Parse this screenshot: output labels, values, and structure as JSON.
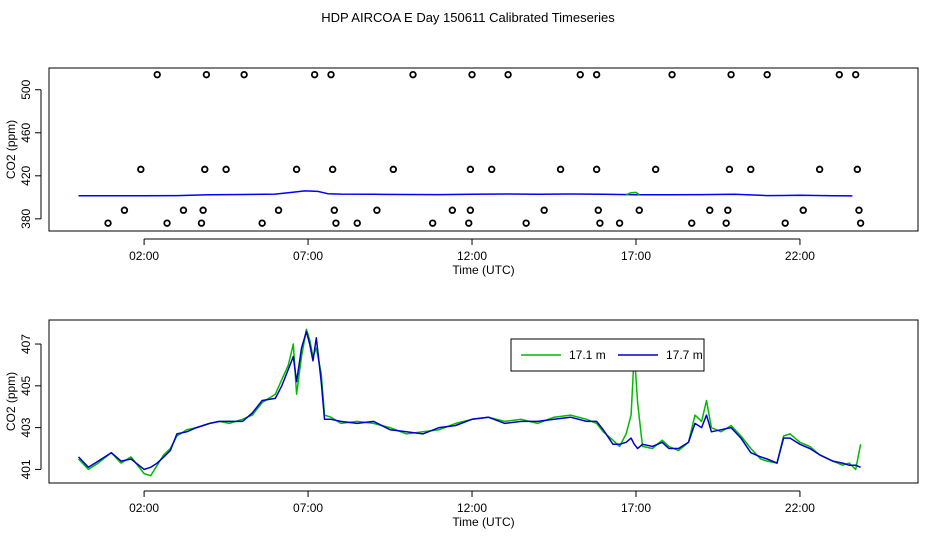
{
  "chart_data": [
    {
      "type": "scatter",
      "title": "HDP AIRCOA E  Day 150611  Calibrated Timeseries",
      "xlabel": "Time (UTC)",
      "ylabel": "CO2 (ppm)",
      "xlim": [
        -0.9,
        25.6
      ],
      "ylim": [
        368.7,
        520.2
      ],
      "x_ticks": [
        2,
        7,
        12,
        17,
        22
      ],
      "x_tick_labels": [
        "02:00",
        "07:00",
        "12:00",
        "17:00",
        "22:00"
      ],
      "y_ticks": [
        380,
        420,
        460,
        500
      ],
      "y_tick_labels": [
        "380",
        "420",
        "460",
        "500"
      ],
      "series": [
        {
          "color": "#000000",
          "marker": "open-circle",
          "points": [
            [
              0.9,
              376
            ],
            [
              1.4,
              388
            ],
            [
              1.9,
              426
            ],
            [
              2.4,
              514
            ],
            [
              2.7,
              376
            ],
            [
              3.2,
              388
            ],
            [
              3.75,
              376
            ],
            [
              3.8,
              388
            ],
            [
              3.85,
              426
            ],
            [
              3.9,
              514
            ],
            [
              4.5,
              426
            ],
            [
              5.05,
              514
            ],
            [
              5.6,
              376
            ],
            [
              6.1,
              388
            ],
            [
              6.65,
              426
            ],
            [
              7.2,
              514
            ],
            [
              7.7,
              514
            ],
            [
              7.75,
              426
            ],
            [
              7.8,
              388
            ],
            [
              7.85,
              376
            ],
            [
              8.5,
              376
            ],
            [
              9.1,
              388
            ],
            [
              9.6,
              426
            ],
            [
              10.2,
              514
            ],
            [
              10.8,
              376
            ],
            [
              11.4,
              388
            ],
            [
              11.9,
              376
            ],
            [
              11.95,
              388
            ],
            [
              11.95,
              426
            ],
            [
              12.0,
              514
            ],
            [
              12.6,
              426
            ],
            [
              13.1,
              514
            ],
            [
              13.65,
              376
            ],
            [
              14.2,
              388
            ],
            [
              14.7,
              426
            ],
            [
              15.3,
              514
            ],
            [
              15.8,
              514
            ],
            [
              15.8,
              426
            ],
            [
              15.85,
              388
            ],
            [
              15.9,
              376
            ],
            [
              16.5,
              376
            ],
            [
              17.1,
              388
            ],
            [
              17.6,
              426
            ],
            [
              18.1,
              514
            ],
            [
              18.7,
              376
            ],
            [
              19.25,
              388
            ],
            [
              19.75,
              376
            ],
            [
              19.8,
              388
            ],
            [
              19.85,
              426
            ],
            [
              19.9,
              514
            ],
            [
              20.5,
              426
            ],
            [
              21.0,
              514
            ],
            [
              21.55,
              376
            ],
            [
              22.1,
              388
            ],
            [
              22.6,
              426
            ],
            [
              23.2,
              514
            ],
            [
              23.7,
              514
            ],
            [
              23.75,
              426
            ],
            [
              23.8,
              388
            ],
            [
              23.85,
              376
            ]
          ]
        },
        {
          "color": "#0000ff",
          "type": "line",
          "x": [
            0.0,
            1.0,
            2.0,
            3.0,
            4.0,
            5.0,
            6.0,
            6.5,
            6.9,
            7.3,
            7.6,
            8.0,
            9.0,
            10.0,
            11.0,
            12.0,
            13.0,
            14.0,
            15.0,
            16.0,
            17.0,
            18.0,
            19.0,
            20.0,
            21.0,
            21.5,
            22.0,
            23.0,
            23.6
          ],
          "y": [
            401.5,
            401.4,
            401.4,
            401.6,
            402.3,
            402.6,
            403.0,
            404.6,
            406.0,
            405.5,
            403.4,
            403.0,
            402.8,
            402.6,
            402.5,
            402.9,
            403.1,
            402.9,
            403.1,
            402.9,
            402.4,
            402.3,
            402.5,
            402.9,
            401.6,
            401.7,
            401.9,
            401.4,
            401.3
          ]
        },
        {
          "color": "#00bb00",
          "type": "line",
          "x": [
            16.7,
            16.85,
            17.0,
            17.1
          ],
          "y": [
            402.4,
            404.3,
            404.6,
            402.4
          ]
        }
      ]
    },
    {
      "type": "line",
      "xlabel": "Time (UTC)",
      "ylabel": "CO2 (ppm)",
      "xlim": [
        -0.9,
        25.6
      ],
      "ylim": [
        400.35,
        408.15
      ],
      "x_ticks": [
        2,
        7,
        12,
        17,
        22
      ],
      "x_tick_labels": [
        "02:00",
        "07:00",
        "12:00",
        "17:00",
        "22:00"
      ],
      "y_ticks": [
        401,
        403,
        405,
        407
      ],
      "y_tick_labels": [
        "401",
        "403",
        "405",
        "407"
      ],
      "legend_position": "top-right",
      "series": [
        {
          "name": "17.1 m",
          "color": "#00bb00",
          "x": [
            0.0,
            0.3,
            0.6,
            1.0,
            1.3,
            1.6,
            2.0,
            2.2,
            2.4,
            2.6,
            2.8,
            3.0,
            3.3,
            3.6,
            4.0,
            4.3,
            4.6,
            5.0,
            5.3,
            5.6,
            6.0,
            6.2,
            6.4,
            6.55,
            6.65,
            6.8,
            6.95,
            7.05,
            7.15,
            7.25,
            7.4,
            7.5,
            7.7,
            8.0,
            8.5,
            9.0,
            9.5,
            10.0,
            10.5,
            11.0,
            11.5,
            12.0,
            12.5,
            13.0,
            13.5,
            14.0,
            14.5,
            15.0,
            15.5,
            15.8,
            16.0,
            16.3,
            16.5,
            16.7,
            16.85,
            16.95,
            17.05,
            17.2,
            17.5,
            17.8,
            18.0,
            18.3,
            18.6,
            18.8,
            19.0,
            19.15,
            19.3,
            19.6,
            19.9,
            20.2,
            20.5,
            20.8,
            21.0,
            21.3,
            21.5,
            21.7,
            22.0,
            22.3,
            22.6,
            23.0,
            23.3,
            23.5,
            23.7,
            23.85
          ],
          "y": [
            401.5,
            401.0,
            401.3,
            401.8,
            401.3,
            401.6,
            400.8,
            400.7,
            401.2,
            401.7,
            402.0,
            402.6,
            402.9,
            403.0,
            403.2,
            403.3,
            403.2,
            403.4,
            403.6,
            404.2,
            404.6,
            405.3,
            406.0,
            407.0,
            404.6,
            406.4,
            407.7,
            407.2,
            406.4,
            406.8,
            405.6,
            403.6,
            403.5,
            403.2,
            403.3,
            403.2,
            403.0,
            402.7,
            402.8,
            402.9,
            403.2,
            403.4,
            403.5,
            403.3,
            403.4,
            403.2,
            403.5,
            403.6,
            403.4,
            403.2,
            402.8,
            402.4,
            402.1,
            402.7,
            403.6,
            406.6,
            404.2,
            402.1,
            402.0,
            402.4,
            402.1,
            401.9,
            402.3,
            403.6,
            403.3,
            404.3,
            403.0,
            402.8,
            403.1,
            402.6,
            402.0,
            401.5,
            401.4,
            401.3,
            402.6,
            402.7,
            402.3,
            402.1,
            401.7,
            401.4,
            401.2,
            401.3,
            401.0,
            402.2
          ]
        },
        {
          "name": "17.7 m",
          "color": "#0000cc",
          "x": [
            0.0,
            0.3,
            0.6,
            1.0,
            1.3,
            1.6,
            2.0,
            2.2,
            2.4,
            2.6,
            2.8,
            3.0,
            3.3,
            3.6,
            4.0,
            4.3,
            4.6,
            5.0,
            5.3,
            5.6,
            6.0,
            6.2,
            6.4,
            6.55,
            6.65,
            6.8,
            6.95,
            7.05,
            7.15,
            7.25,
            7.4,
            7.5,
            7.7,
            8.0,
            8.5,
            9.0,
            9.5,
            10.0,
            10.5,
            11.0,
            11.5,
            12.0,
            12.5,
            13.0,
            13.5,
            14.0,
            14.5,
            15.0,
            15.5,
            15.8,
            16.0,
            16.3,
            16.5,
            16.7,
            16.85,
            16.95,
            17.05,
            17.2,
            17.5,
            17.8,
            18.0,
            18.3,
            18.6,
            18.8,
            19.0,
            19.15,
            19.3,
            19.6,
            19.9,
            20.2,
            20.5,
            20.8,
            21.0,
            21.3,
            21.5,
            21.7,
            22.0,
            22.3,
            22.6,
            23.0,
            23.3,
            23.5,
            23.7,
            23.85
          ],
          "y": [
            401.6,
            401.1,
            401.4,
            401.8,
            401.4,
            401.5,
            401.0,
            401.1,
            401.3,
            401.6,
            401.9,
            402.7,
            402.8,
            403.0,
            403.2,
            403.3,
            403.3,
            403.3,
            403.7,
            404.3,
            404.4,
            405.0,
            405.8,
            406.4,
            405.2,
            406.8,
            407.6,
            407.0,
            406.2,
            407.3,
            405.2,
            403.4,
            403.4,
            403.3,
            403.2,
            403.3,
            402.9,
            402.8,
            402.7,
            403.0,
            403.1,
            403.4,
            403.5,
            403.2,
            403.3,
            403.3,
            403.4,
            403.5,
            403.3,
            403.3,
            402.9,
            402.2,
            402.2,
            402.3,
            402.5,
            402.2,
            402.0,
            402.2,
            402.1,
            402.3,
            402.0,
            402.0,
            402.3,
            403.2,
            403.0,
            403.6,
            402.8,
            402.9,
            403.0,
            402.5,
            401.8,
            401.6,
            401.5,
            401.3,
            402.5,
            402.5,
            402.2,
            402.0,
            401.7,
            401.4,
            401.3,
            401.2,
            401.2,
            401.1
          ]
        }
      ]
    }
  ]
}
